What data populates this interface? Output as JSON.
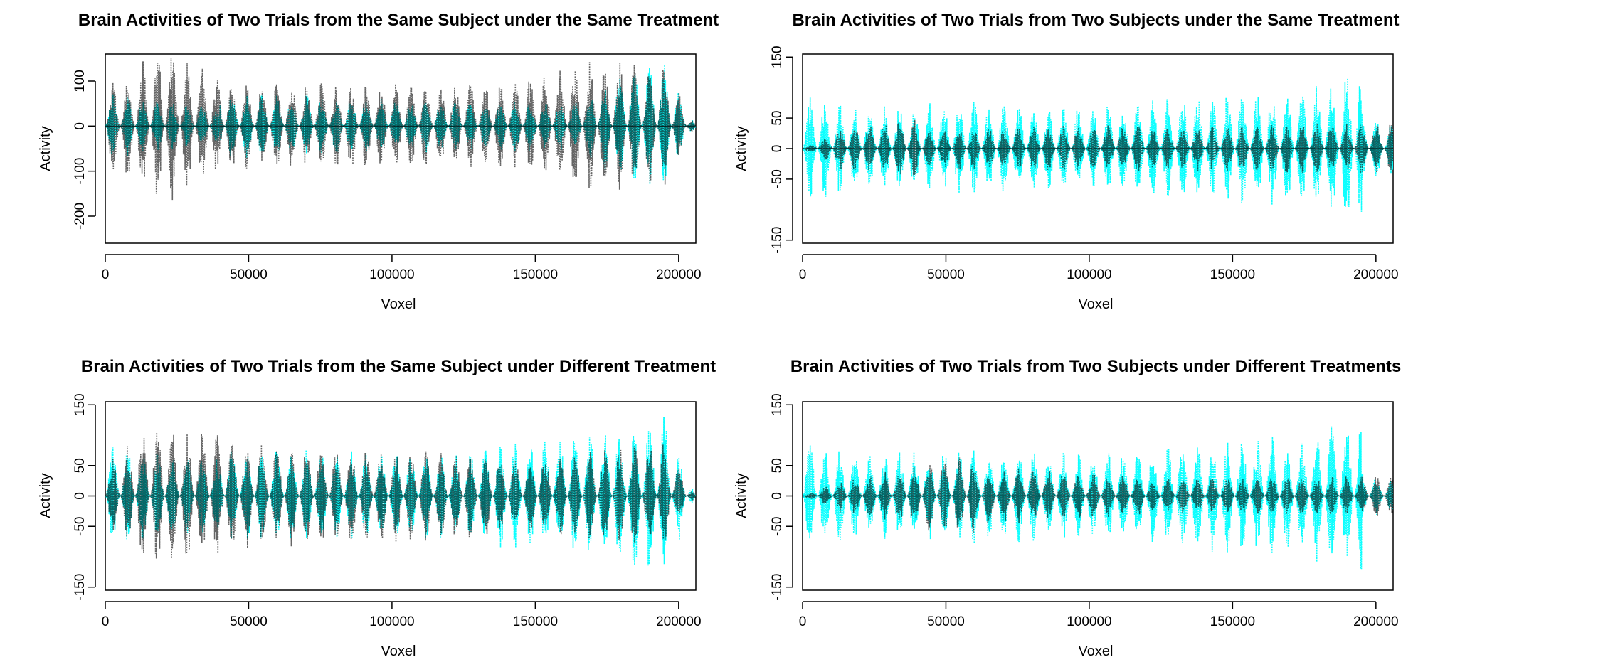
{
  "chart_data": [
    {
      "type": "line",
      "title": "Brain Activities of Two Trials from the Same Subject under the Same Treatment",
      "xlabel": "Voxel",
      "ylabel": "Activity",
      "xlim": [
        0,
        206000
      ],
      "ylim": [
        -260,
        160
      ],
      "xticks": [
        "0",
        "50000",
        "100000",
        "150000",
        "200000"
      ],
      "yticks": [
        "100",
        "0",
        "-100",
        "-200"
      ],
      "x_extent": 206000,
      "series": [
        {
          "color": "#00ffff",
          "line_style": "dotted",
          "segments": [
            [
              0,
              40000,
              75,
              40
            ],
            [
              40000,
              130000,
              75,
              55
            ],
            [
              130000,
              165000,
              55,
              60
            ],
            [
              165000,
              180000,
              60,
              120
            ],
            [
              180000,
              195000,
              120,
              140
            ],
            [
              195000,
              206000,
              140,
              0
            ]
          ]
        },
        {
          "color": "#000000",
          "line_style": "dotted",
          "segments": [
            [
              0,
              20000,
              90,
              180
            ],
            [
              20000,
              40000,
              180,
              110
            ],
            [
              40000,
              140000,
              100,
              95
            ],
            [
              140000,
              170000,
              95,
              150
            ],
            [
              170000,
              195000,
              150,
              140
            ],
            [
              195000,
              206000,
              140,
              0
            ]
          ]
        }
      ]
    },
    {
      "type": "line",
      "title": "Brain Activities of Two Trials from Two Subjects under the Same Treatment",
      "xlabel": "Voxel",
      "ylabel": "Activity",
      "xlim": [
        0,
        206000
      ],
      "ylim": [
        -155,
        155
      ],
      "xticks": [
        "0",
        "50000",
        "100000",
        "150000",
        "200000"
      ],
      "yticks": [
        "150",
        "50",
        "0",
        "-50",
        "-150"
      ],
      "x_extent": 206000,
      "series": [
        {
          "color": "#00ffff",
          "line_style": "dotted",
          "segments": [
            [
              0,
              20000,
              90,
              70
            ],
            [
              20000,
              60000,
              70,
              80
            ],
            [
              60000,
              100000,
              80,
              70
            ],
            [
              100000,
              130000,
              70,
              85
            ],
            [
              130000,
              175000,
              90,
              100
            ],
            [
              175000,
              195000,
              100,
              140
            ],
            [
              195000,
              206000,
              60,
              40
            ]
          ]
        },
        {
          "color": "#000000",
          "line_style": "dotted",
          "segments": [
            [
              0,
              10000,
              0,
              25
            ],
            [
              10000,
              40000,
              35,
              50
            ],
            [
              40000,
              120000,
              35,
              40
            ],
            [
              120000,
              206000,
              35,
              45
            ]
          ]
        }
      ]
    },
    {
      "type": "line",
      "title": "Brain Activities of Two Trials from the Same Subject under Different Treatment",
      "xlabel": "Voxel",
      "ylabel": "Activity",
      "xlim": [
        0,
        206000
      ],
      "ylim": [
        -155,
        155
      ],
      "xticks": [
        "0",
        "50000",
        "100000",
        "150000",
        "200000"
      ],
      "yticks": [
        "150",
        "50",
        "0",
        "-50",
        "-150"
      ],
      "x_extent": 206000,
      "series": [
        {
          "color": "#00ffff",
          "line_style": "dotted",
          "segments": [
            [
              0,
              40000,
              85,
              60
            ],
            [
              40000,
              130000,
              80,
              70
            ],
            [
              130000,
              175000,
              80,
              110
            ],
            [
              175000,
              195000,
              110,
              140
            ],
            [
              195000,
              206000,
              140,
              0
            ]
          ]
        },
        {
          "color": "#000000",
          "line_style": "dotted",
          "segments": [
            [
              0,
              15000,
              55,
              120
            ],
            [
              15000,
              40000,
              120,
              100
            ],
            [
              40000,
              140000,
              90,
              70
            ],
            [
              140000,
              175000,
              60,
              80
            ],
            [
              175000,
              195000,
              80,
              95
            ],
            [
              195000,
              206000,
              95,
              0
            ]
          ]
        }
      ]
    },
    {
      "type": "line",
      "title": "Brain Activities of Two Trials from Two Subjects under Different Treatments",
      "xlabel": "Voxel",
      "ylabel": "Activity",
      "xlim": [
        0,
        206000
      ],
      "ylim": [
        -155,
        155
      ],
      "xticks": [
        "0",
        "50000",
        "100000",
        "150000",
        "200000"
      ],
      "yticks": [
        "150",
        "50",
        "0",
        "-50",
        "-150"
      ],
      "x_extent": 206000,
      "series": [
        {
          "color": "#00ffff",
          "line_style": "dotted",
          "segments": [
            [
              0,
              20000,
              90,
              70
            ],
            [
              20000,
              60000,
              70,
              80
            ],
            [
              60000,
              100000,
              80,
              70
            ],
            [
              100000,
              130000,
              70,
              85
            ],
            [
              130000,
              175000,
              90,
              100
            ],
            [
              175000,
              195000,
              100,
              140
            ],
            [
              195000,
              206000,
              40,
              25
            ]
          ]
        },
        {
          "color": "#000000",
          "line_style": "dotted",
          "segments": [
            [
              0,
              10000,
              0,
              20
            ],
            [
              10000,
              40000,
              25,
              50
            ],
            [
              40000,
              60000,
              60,
              70
            ],
            [
              60000,
              120000,
              50,
              35
            ],
            [
              120000,
              206000,
              30,
              35
            ]
          ]
        }
      ]
    }
  ]
}
